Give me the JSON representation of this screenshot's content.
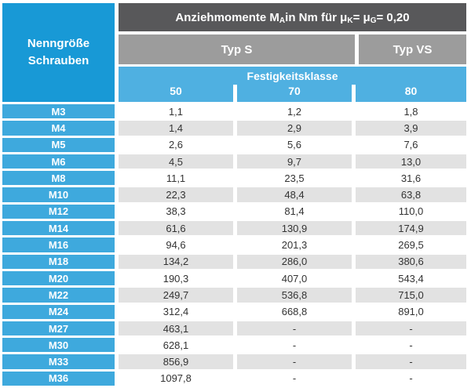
{
  "header": {
    "left_title": "Nenngröße\nSchrauben",
    "title_parts": [
      {
        "text": "Anziehmomente M"
      },
      {
        "sub": "A"
      },
      {
        "text": " in Nm für μ"
      },
      {
        "sub": "K"
      },
      {
        "text": " = μ"
      },
      {
        "sub": "G"
      },
      {
        "text": " = 0,20"
      }
    ],
    "typ_s": "Typ S",
    "typ_vs": "Typ VS",
    "festigkeitsklasse_label": "Festigkeitsklasse",
    "classes": [
      "50",
      "70",
      "80"
    ]
  },
  "table": {
    "rows": [
      {
        "size": "M3",
        "values": [
          "1,1",
          "1,2",
          "1,8"
        ]
      },
      {
        "size": "M4",
        "values": [
          "1,4",
          "2,9",
          "3,9"
        ]
      },
      {
        "size": "M5",
        "values": [
          "2,6",
          "5,6",
          "7,6"
        ]
      },
      {
        "size": "M6",
        "values": [
          "4,5",
          "9,7",
          "13,0"
        ]
      },
      {
        "size": "M8",
        "values": [
          "11,1",
          "23,5",
          "31,6"
        ]
      },
      {
        "size": "M10",
        "values": [
          "22,3",
          "48,4",
          "63,8"
        ]
      },
      {
        "size": "M12",
        "values": [
          "38,3",
          "81,4",
          "110,0"
        ]
      },
      {
        "size": "M14",
        "values": [
          "61,6",
          "130,9",
          "174,9"
        ]
      },
      {
        "size": "M16",
        "values": [
          "94,6",
          "201,3",
          "269,5"
        ]
      },
      {
        "size": "M18",
        "values": [
          "134,2",
          "286,0",
          "380,6"
        ]
      },
      {
        "size": "M20",
        "values": [
          "190,3",
          "407,0",
          "543,4"
        ]
      },
      {
        "size": "M22",
        "values": [
          "249,7",
          "536,8",
          "715,0"
        ]
      },
      {
        "size": "M24",
        "values": [
          "312,4",
          "668,8",
          "891,0"
        ]
      },
      {
        "size": "M27",
        "values": [
          "463,1",
          "-",
          "-"
        ]
      },
      {
        "size": "M30",
        "values": [
          "628,1",
          "-",
          "-"
        ]
      },
      {
        "size": "M33",
        "values": [
          "856,9",
          "-",
          "-"
        ]
      },
      {
        "size": "M36",
        "values": [
          "1097,8",
          "-",
          "-"
        ]
      }
    ]
  },
  "colors": {
    "header_blue": "#1899D6",
    "row_blue": "#3EA9DD",
    "class_blue": "#4FB0E1",
    "title_gray": "#58585A",
    "typ_gray": "#9C9C9C",
    "alt_row_gray": "#E2E2E2",
    "value_text": "#333333"
  }
}
